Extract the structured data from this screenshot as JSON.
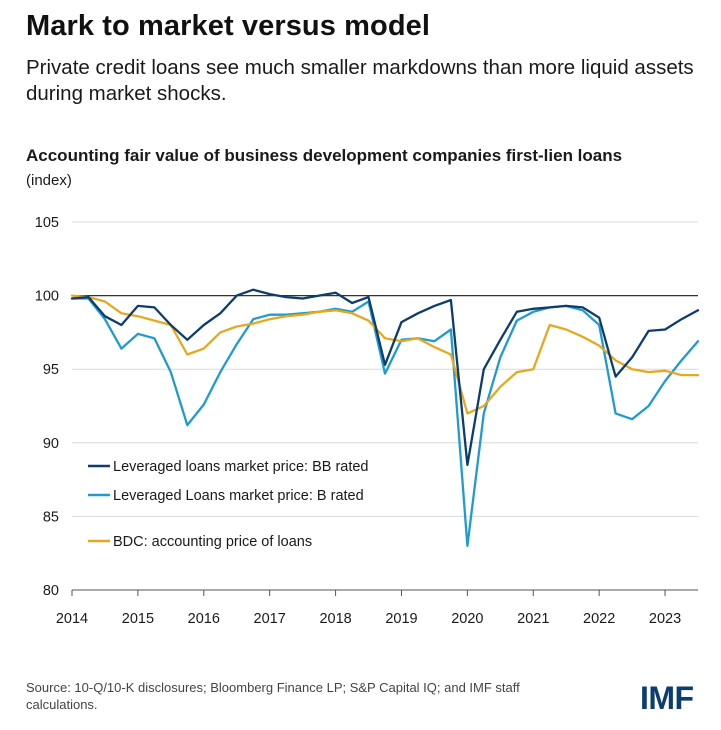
{
  "header": {
    "headline": "Mark to market versus model",
    "subtitle": "Private credit loans see much smaller markdowns than more liquid assets during market shocks."
  },
  "footer": {
    "source": "Source: 10-Q/10-K disclosures; Bloomberg Finance LP; S&P Capital IQ; and IMF staff calculations.",
    "logo_text": "IMF"
  },
  "chart_data": {
    "type": "line",
    "title": "Accounting fair value of business development companies first-lien loans",
    "ylabel": "(index)",
    "xlabel": "",
    "xlim": [
      2014,
      2023.5
    ],
    "ylim": [
      80,
      105
    ],
    "x_ticks": [
      "2014",
      "2015",
      "2016",
      "2017",
      "2018",
      "2019",
      "2020",
      "2021",
      "2022",
      "2023"
    ],
    "y_ticks": [
      "80",
      "85",
      "90",
      "95",
      "100",
      "105"
    ],
    "reference_line": 100,
    "grid": "horizontal",
    "legend_position": "bottom-left",
    "x": [
      2014.0,
      2014.25,
      2014.5,
      2014.75,
      2015.0,
      2015.25,
      2015.5,
      2015.75,
      2016.0,
      2016.25,
      2016.5,
      2016.75,
      2017.0,
      2017.25,
      2017.5,
      2017.75,
      2018.0,
      2018.25,
      2018.5,
      2018.75,
      2019.0,
      2019.25,
      2019.5,
      2019.75,
      2020.0,
      2020.25,
      2020.5,
      2020.75,
      2021.0,
      2021.25,
      2021.5,
      2021.75,
      2022.0,
      2022.25,
      2022.5,
      2022.75,
      2023.0,
      2023.25,
      2023.5
    ],
    "series": [
      {
        "name": "Leveraged loans market price: BB rated",
        "color": "#0b3d6e",
        "values": [
          99.8,
          99.9,
          98.6,
          98.0,
          99.3,
          99.2,
          98.0,
          97.0,
          98.0,
          98.8,
          100.0,
          100.4,
          100.1,
          99.9,
          99.8,
          100.0,
          100.2,
          99.5,
          99.9,
          95.3,
          98.2,
          98.8,
          99.3,
          99.7,
          88.5,
          95.0,
          97.0,
          98.9,
          99.1,
          99.2,
          99.3,
          99.2,
          98.5,
          94.5,
          95.8,
          97.6,
          97.7,
          98.4,
          99.0
        ]
      },
      {
        "name": "Leveraged Loans market price: B rated",
        "color": "#1f9bd1",
        "values": [
          99.8,
          99.8,
          98.4,
          96.4,
          97.4,
          97.1,
          94.8,
          91.2,
          92.6,
          94.8,
          96.7,
          98.4,
          98.7,
          98.7,
          98.8,
          98.9,
          99.1,
          98.9,
          99.6,
          94.7,
          97.0,
          97.1,
          96.9,
          97.7,
          83.0,
          92.0,
          95.8,
          98.3,
          98.9,
          99.2,
          99.3,
          99.0,
          98.0,
          92.0,
          91.6,
          92.5,
          94.2,
          95.6,
          96.9
        ]
      },
      {
        "name": "BDC: accounting price of loans",
        "color": "#e8a81e",
        "values": [
          100.0,
          99.9,
          99.6,
          98.8,
          98.6,
          98.3,
          98.0,
          96.0,
          96.4,
          97.5,
          97.9,
          98.1,
          98.4,
          98.6,
          98.7,
          98.9,
          99.0,
          98.8,
          98.3,
          97.1,
          96.9,
          97.1,
          96.5,
          96.0,
          92.0,
          92.5,
          93.8,
          94.8,
          95.0,
          98.0,
          97.7,
          97.2,
          96.6,
          95.6,
          95.0,
          94.8,
          94.9,
          94.6,
          94.6
        ]
      }
    ]
  }
}
